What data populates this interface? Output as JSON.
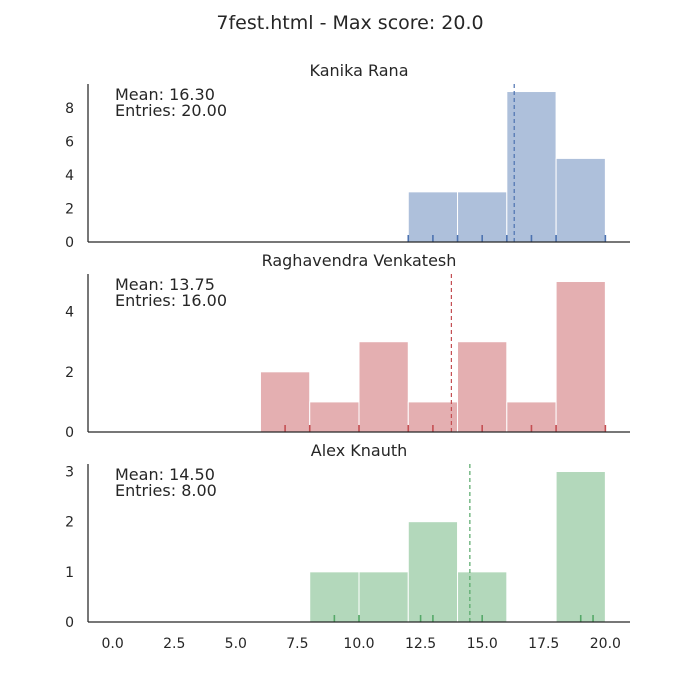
{
  "suptitle": "7fest.html - Max score: 20.0",
  "chart_data": {
    "type": "histogram",
    "x_range": [
      -1,
      21
    ],
    "x_ticks": [
      "0.0",
      "2.5",
      "5.0",
      "7.5",
      "10.0",
      "12.5",
      "15.0",
      "17.5",
      "20.0"
    ],
    "x_tick_values": [
      0,
      2.5,
      5,
      7.5,
      10,
      12.5,
      15,
      17.5,
      20
    ],
    "grid": false,
    "panels": [
      {
        "title": "Kanika Rana",
        "color": "#4c72b0",
        "mean_label": "Mean: 16.30",
        "entries_label": "Entries: 20.00",
        "mean": 16.3,
        "bins": [
          {
            "x0": 12,
            "x1": 14,
            "count": 3
          },
          {
            "x0": 14,
            "x1": 16,
            "count": 3
          },
          {
            "x0": 16,
            "x1": 18,
            "count": 9
          },
          {
            "x0": 18,
            "x1": 20,
            "count": 5
          }
        ],
        "rug": [
          12,
          13,
          14,
          15,
          16,
          17,
          18,
          20
        ],
        "y_range": [
          0,
          9.45
        ],
        "y_ticks": [
          0,
          2,
          4,
          6,
          8
        ]
      },
      {
        "title": "Raghavendra Venkatesh",
        "color": "#c44e52",
        "mean_label": "Mean: 13.75",
        "entries_label": "Entries: 16.00",
        "mean": 13.75,
        "bins": [
          {
            "x0": 6,
            "x1": 8,
            "count": 2
          },
          {
            "x0": 8,
            "x1": 10,
            "count": 1
          },
          {
            "x0": 10,
            "x1": 12,
            "count": 3
          },
          {
            "x0": 12,
            "x1": 14,
            "count": 1
          },
          {
            "x0": 14,
            "x1": 16,
            "count": 3
          },
          {
            "x0": 16,
            "x1": 18,
            "count": 1
          },
          {
            "x0": 18,
            "x1": 20,
            "count": 5
          }
        ],
        "rug": [
          7,
          8,
          10,
          12,
          13,
          15,
          17,
          18,
          20
        ],
        "y_range": [
          0,
          5.25
        ],
        "y_ticks": [
          0,
          2,
          4
        ]
      },
      {
        "title": "Alex Knauth",
        "color": "#55a868",
        "mean_label": "Mean: 14.50",
        "entries_label": "Entries: 8.00",
        "mean": 14.5,
        "bins": [
          {
            "x0": 8,
            "x1": 10,
            "count": 1
          },
          {
            "x0": 10,
            "x1": 12,
            "count": 1
          },
          {
            "x0": 12,
            "x1": 14,
            "count": 2
          },
          {
            "x0": 14,
            "x1": 16,
            "count": 1
          },
          {
            "x0": 18,
            "x1": 20,
            "count": 3
          }
        ],
        "rug": [
          9,
          10,
          12.5,
          13,
          15,
          19,
          19.5
        ],
        "y_range": [
          0,
          3.15
        ],
        "y_ticks": [
          0,
          1,
          2,
          3
        ]
      }
    ]
  }
}
